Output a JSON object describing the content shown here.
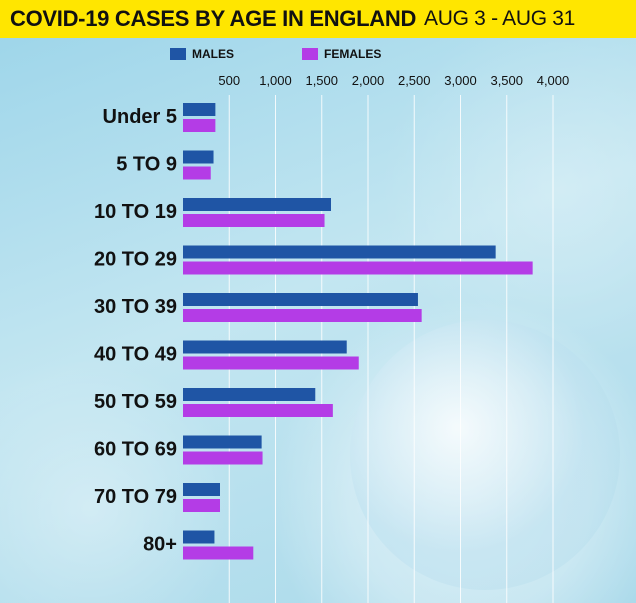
{
  "header": {
    "title": "COVID-19 CASES BY AGE IN ENGLAND",
    "subtitle": "AUG 3 - AUG 31"
  },
  "colors": {
    "males": "#1f55a5",
    "females": "#b43ce6",
    "header_bg": "#ffe600",
    "gridline": "#ffffff"
  },
  "chart_data": {
    "type": "bar",
    "orientation": "horizontal",
    "title": "COVID-19 CASES BY AGE IN ENGLAND",
    "subtitle": "AUG 3 - AUG 31",
    "xlabel": "",
    "ylabel": "",
    "xlim": [
      0,
      4000
    ],
    "xticks": [
      500,
      1000,
      1500,
      2000,
      2500,
      3000,
      3500,
      4000
    ],
    "xtick_labels": [
      "500",
      "1,000",
      "1,500",
      "2,000",
      "2,500",
      "3,000",
      "3,500",
      "4,000"
    ],
    "grid": true,
    "legend_position": "top",
    "categories": [
      "Under 5",
      "5 TO 9",
      "10 TO 19",
      "20 TO 29",
      "30 TO 39",
      "40 TO 49",
      "50 TO 59",
      "60 TO 69",
      "70 TO 79",
      "80+"
    ],
    "series": [
      {
        "name": "MALES",
        "values": [
          350,
          330,
          1600,
          3380,
          2540,
          1770,
          1430,
          850,
          400,
          340
        ]
      },
      {
        "name": "FEMALES",
        "values": [
          350,
          300,
          1530,
          3780,
          2580,
          1900,
          1620,
          860,
          400,
          760
        ]
      }
    ]
  }
}
